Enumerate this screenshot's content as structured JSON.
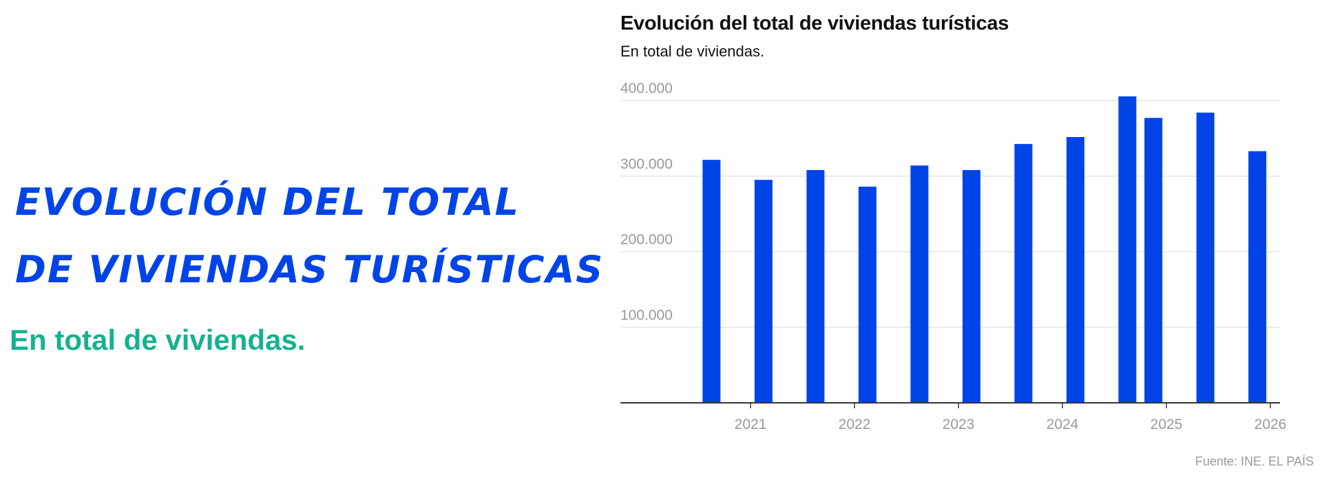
{
  "left_panel": {
    "title_lines": [
      "Evolución del total",
      "de viviendas turísticas"
    ],
    "subtitle": "En total de viviendas."
  },
  "colors": {
    "bar": "#0044e8",
    "left_title": "#0044e8",
    "left_subtitle": "#14b38e",
    "grid": "#e6e6e6",
    "axis": "#333333",
    "tick_text": "#999999"
  },
  "chart_data": {
    "type": "bar",
    "title": "Evolución del total de viviendas turísticas",
    "subtitle": "En total de viviendas.",
    "source": "Fuente: INE. EL PAÍS",
    "x": [
      "2020-08",
      "2021-02",
      "2021-08",
      "2022-02",
      "2022-08",
      "2023-02",
      "2023-08",
      "2024-02",
      "2024-08",
      "2024-11",
      "2025-05",
      "2025-11"
    ],
    "values": [
      321500,
      295000,
      308000,
      286000,
      314000,
      308000,
      342500,
      351700,
      405500,
      377000,
      384000,
      333000
    ],
    "xticks": [
      "2021",
      "2022",
      "2023",
      "2024",
      "2025",
      "2026"
    ],
    "yticks": [
      "100.000",
      "200.000",
      "300.000",
      "400.000"
    ],
    "ytick_values": [
      100000,
      200000,
      300000,
      400000
    ],
    "ylim": [
      0,
      400000
    ],
    "xlim": [
      "2020-01",
      "2026-01"
    ],
    "grid": "horizontal",
    "legend": "none"
  }
}
